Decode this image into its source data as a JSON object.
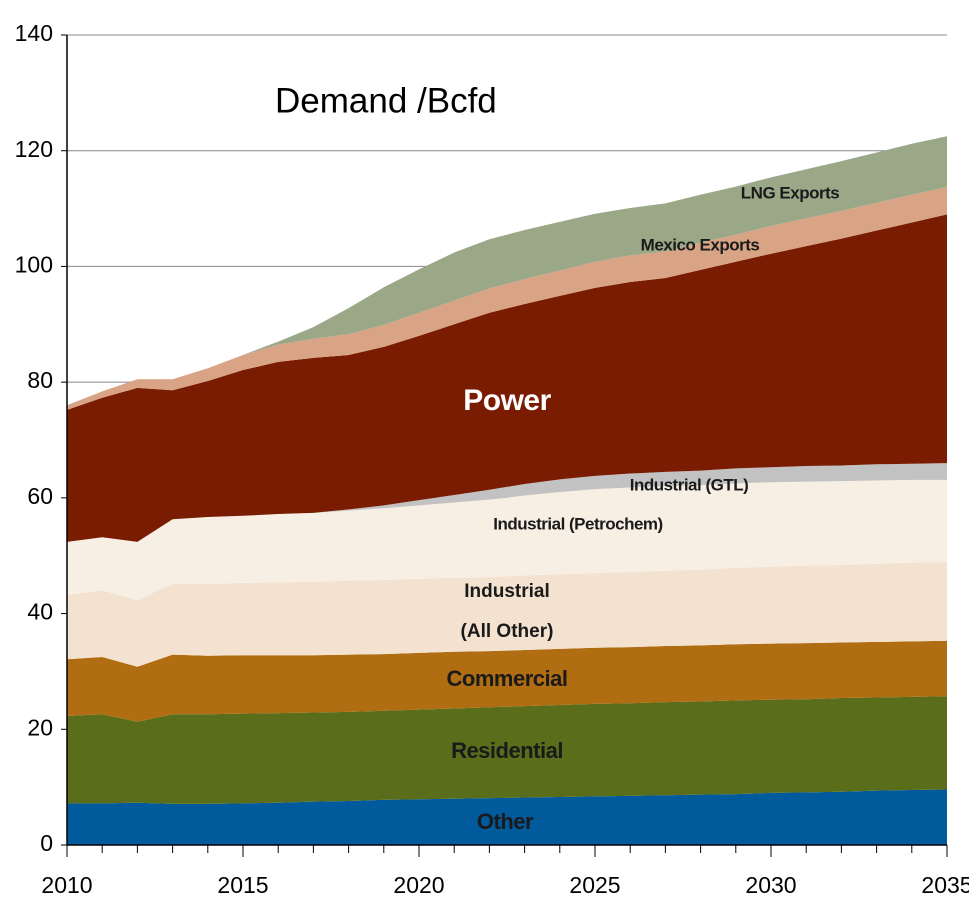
{
  "chart_data": {
    "type": "stacked_area",
    "title": "Demand /Bcfd",
    "x": [
      2010,
      2011,
      2012,
      2013,
      2014,
      2015,
      2016,
      2017,
      2018,
      2019,
      2020,
      2021,
      2022,
      2023,
      2024,
      2025,
      2026,
      2027,
      2028,
      2029,
      2030,
      2031,
      2032,
      2033,
      2034,
      2035
    ],
    "xlim": [
      2010,
      2035
    ],
    "xticks": [
      2010,
      2015,
      2020,
      2025,
      2030,
      2035
    ],
    "ylim": [
      0,
      140
    ],
    "yticks": [
      0,
      20,
      40,
      60,
      80,
      100,
      120,
      140
    ],
    "grid": true,
    "series": [
      {
        "name": "Other",
        "color": "#005a9c",
        "values": [
          7.2,
          7.2,
          7.3,
          7.1,
          7.1,
          7.2,
          7.3,
          7.5,
          7.6,
          7.8,
          7.9,
          8.0,
          8.1,
          8.2,
          8.3,
          8.4,
          8.5,
          8.6,
          8.7,
          8.8,
          9.0,
          9.1,
          9.2,
          9.4,
          9.5,
          9.6
        ]
      },
      {
        "name": "Residential",
        "color": "#596d1b",
        "values": [
          15.1,
          15.4,
          14.0,
          15.5,
          15.5,
          15.5,
          15.5,
          15.4,
          15.4,
          15.4,
          15.5,
          15.6,
          15.7,
          15.8,
          15.9,
          16.0,
          16.0,
          16.1,
          16.1,
          16.2,
          16.1,
          16.1,
          16.2,
          16.1,
          16.1,
          16.1
        ]
      },
      {
        "name": "Commercial",
        "color": "#b06d12",
        "values": [
          9.8,
          9.9,
          9.5,
          10.3,
          10.1,
          10.1,
          10.0,
          9.9,
          9.9,
          9.8,
          9.8,
          9.8,
          9.7,
          9.7,
          9.7,
          9.7,
          9.7,
          9.7,
          9.7,
          9.7,
          9.7,
          9.7,
          9.6,
          9.6,
          9.6,
          9.6
        ]
      },
      {
        "name": "Industrial (All Other)",
        "color": "#f3e2cf",
        "values": [
          11.1,
          11.5,
          11.5,
          12.3,
          12.4,
          12.5,
          12.6,
          12.7,
          12.8,
          12.8,
          12.8,
          12.8,
          12.8,
          12.9,
          12.9,
          12.9,
          13.0,
          13.0,
          13.1,
          13.2,
          13.3,
          13.4,
          13.4,
          13.5,
          13.6,
          13.6
        ]
      },
      {
        "name": "Industrial (Petrochem)",
        "color": "#f8efe4",
        "values": [
          9.2,
          9.2,
          10.1,
          11.1,
          11.6,
          11.6,
          11.8,
          11.9,
          12.1,
          12.4,
          12.7,
          13.0,
          13.4,
          13.8,
          14.2,
          14.5,
          14.6,
          14.6,
          14.6,
          14.6,
          14.6,
          14.5,
          14.5,
          14.4,
          14.3,
          14.2
        ]
      },
      {
        "name": "Industrial (GTL)",
        "color": "#c2c2c2",
        "values": [
          0,
          0,
          0,
          0,
          0,
          0,
          0,
          0,
          0.2,
          0.5,
          0.9,
          1.3,
          1.7,
          2.0,
          2.2,
          2.3,
          2.4,
          2.5,
          2.5,
          2.6,
          2.6,
          2.7,
          2.7,
          2.8,
          2.8,
          2.9
        ]
      },
      {
        "name": "Power",
        "color": "#7a1c02",
        "values": [
          22.8,
          24.1,
          26.6,
          22.3,
          23.5,
          25.2,
          26.3,
          26.8,
          26.7,
          27.4,
          28.4,
          29.5,
          30.6,
          31.1,
          31.7,
          32.5,
          33.1,
          33.5,
          34.7,
          35.7,
          36.9,
          38.0,
          39.2,
          40.4,
          41.7,
          43.0
        ]
      },
      {
        "name": "Mexico Exports",
        "color": "#d8a485",
        "values": [
          0.8,
          1.1,
          1.5,
          1.9,
          2.2,
          2.6,
          3.0,
          3.3,
          3.6,
          3.8,
          4.0,
          4.1,
          4.2,
          4.3,
          4.4,
          4.5,
          4.6,
          4.6,
          4.7,
          4.7,
          4.8,
          4.8,
          4.8,
          4.8,
          4.8,
          4.7
        ]
      },
      {
        "name": "LNG Exports",
        "color": "#9aa887",
        "values": [
          0,
          0,
          0,
          0,
          0,
          0,
          0.5,
          2.0,
          4.5,
          6.5,
          7.5,
          8.3,
          8.5,
          8.5,
          8.4,
          8.3,
          8.2,
          8.3,
          8.3,
          8.3,
          8.4,
          8.5,
          8.6,
          8.7,
          8.8,
          8.8
        ]
      }
    ]
  }
}
